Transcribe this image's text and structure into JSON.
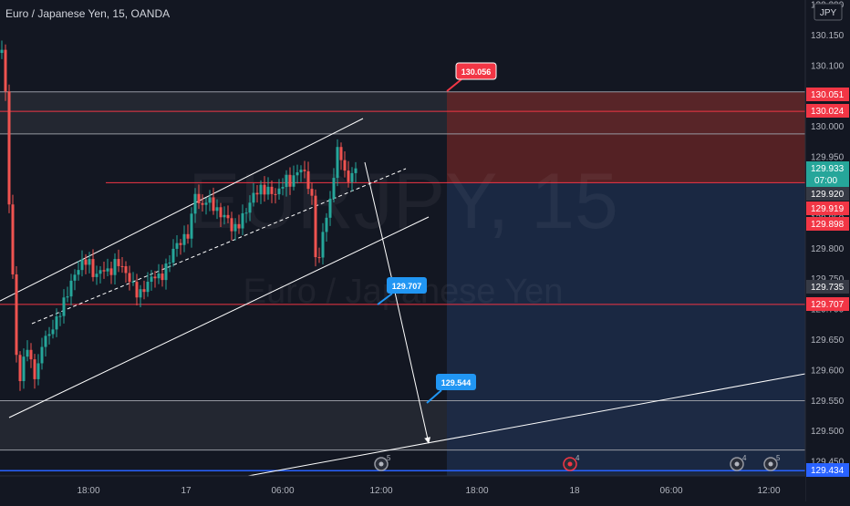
{
  "header": {
    "title": "Euro / Japanese Yen, 15, OANDA"
  },
  "watermark": {
    "symbol": "EURJPY, 15",
    "name": "Euro / Japanese Yen"
  },
  "currency_badge": "JPY",
  "colors": {
    "background": "#131722",
    "up": "#26a69a",
    "down": "#ef5350",
    "trend_line": "#ffffff",
    "level_red": "#f23645",
    "level_blue": "#2962ff",
    "stop_zone": "#6b2626",
    "target_zone": "#1c2b48",
    "callout": "#2196f3"
  },
  "chart_data": {
    "type": "candlestick",
    "symbol": "EURJPY",
    "timeframe": "15",
    "y_axis": {
      "ylim": [
        129.4,
        130.2
      ],
      "tick_labels": [
        "130.200",
        "130.150",
        "130.100",
        "130.050",
        "130.000",
        "129.950",
        "129.900",
        "129.850",
        "129.800",
        "129.750",
        "129.700",
        "129.650",
        "129.600",
        "129.550",
        "129.500",
        "129.450"
      ]
    },
    "x_axis": {
      "tick_labels": [
        "18:00",
        "17",
        "06:00",
        "12:00",
        "18:00",
        "18",
        "06:00",
        "12:00"
      ]
    },
    "price_labels": [
      {
        "value": "130.051",
        "kind": "red"
      },
      {
        "value": "130.024",
        "kind": "red"
      },
      {
        "value": "129.933",
        "kind": "last",
        "countdown": "07:00"
      },
      {
        "value": "129.920",
        "kind": "gray"
      },
      {
        "value": "129.919",
        "kind": "red"
      },
      {
        "value": "129.898",
        "kind": "red"
      },
      {
        "value": "129.735",
        "kind": "gray"
      },
      {
        "value": "129.707",
        "kind": "red"
      },
      {
        "value": "129.434",
        "kind": "blue"
      }
    ],
    "callouts": [
      "130.056",
      "129.707",
      "129.544"
    ],
    "horizontal_levels": [
      {
        "price": 130.056,
        "color": "gray"
      },
      {
        "price": 130.024,
        "color": "red"
      },
      {
        "price": 129.987,
        "color": "gray"
      },
      {
        "price": 129.907,
        "color": "red"
      },
      {
        "price": 129.707,
        "color": "red"
      },
      {
        "price": 129.549,
        "color": "gray"
      },
      {
        "price": 129.468,
        "color": "gray"
      },
      {
        "price": 129.434,
        "color": "blue"
      }
    ],
    "event_markers": [
      {
        "label": "5"
      },
      {
        "label": "4"
      },
      {
        "label": "4"
      },
      {
        "label": "5"
      }
    ]
  }
}
